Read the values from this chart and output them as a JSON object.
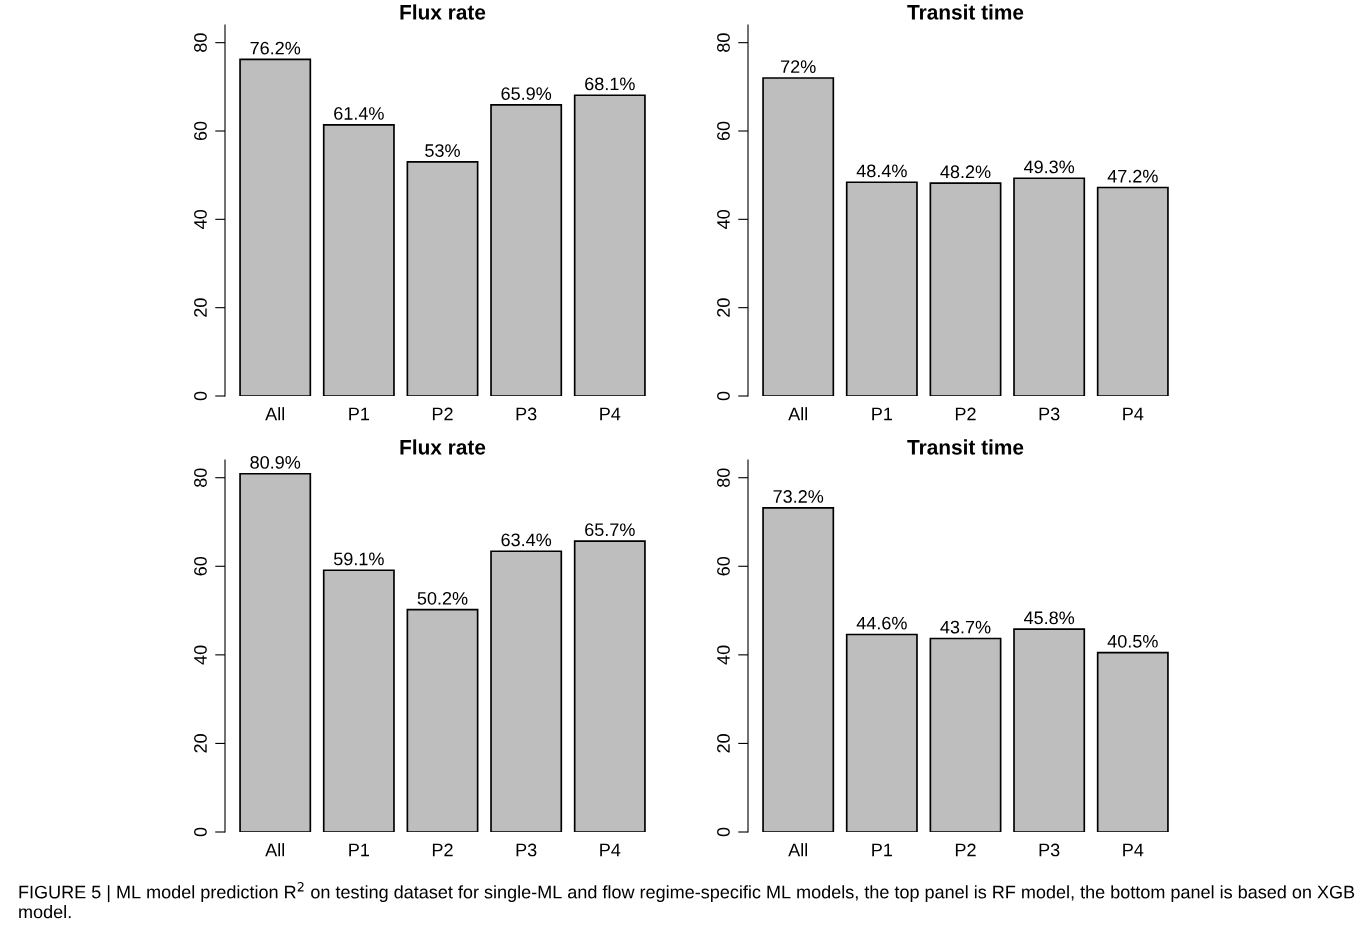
{
  "chart_data": [
    {
      "type": "bar",
      "title": "Flux rate",
      "categories": [
        "All",
        "P1",
        "P2",
        "P3",
        "P4"
      ],
      "values": [
        76.2,
        61.4,
        53,
        65.9,
        68.1
      ],
      "value_labels": [
        "76.2%",
        "61.4%",
        "53%",
        "65.9%",
        "68.1%"
      ],
      "color": "#bebebe",
      "ylim": [
        0,
        84
      ],
      "yticks": [
        0,
        20,
        40,
        60,
        80
      ],
      "grid": false,
      "legend": false,
      "annotations": [
        "FIGURE 5 | ML model prediction R$^{2}$ on testing dataset for single-ML and flow regime-specific ML models, the top panel is RF model, the bottom panel is based on XGB model."
      ]
    },
    {
      "type": "bar",
      "title": "Transit time",
      "categories": [
        "All",
        "P1",
        "P2",
        "P3",
        "P4"
      ],
      "values": [
        72,
        48.4,
        48.2,
        49.3,
        47.2
      ],
      "value_labels": [
        "72%",
        "48.4%",
        "48.2%",
        "49.3%",
        "47.2%"
      ],
      "color": "#bebebe",
      "ylim": [
        0,
        84
      ],
      "yticks": [
        0,
        20,
        40,
        60,
        80
      ],
      "grid": false,
      "legend": false
    },
    {
      "type": "bar",
      "title": "Flux rate",
      "categories": [
        "All",
        "P1",
        "P2",
        "P3",
        "P4"
      ],
      "values": [
        80.9,
        59.1,
        50.2,
        63.4,
        65.7
      ],
      "value_labels": [
        "80.9%",
        "59.1%",
        "50.2%",
        "63.4%",
        "65.7%"
      ],
      "color": "#bebebe",
      "ylim": [
        0,
        84
      ],
      "yticks": [
        0,
        20,
        40,
        60,
        80
      ],
      "grid": false,
      "legend": false
    },
    {
      "type": "bar",
      "title": "Transit time",
      "categories": [
        "All",
        "P1",
        "P2",
        "P3",
        "P4"
      ],
      "values": [
        73.2,
        44.6,
        43.7,
        45.8,
        40.5
      ],
      "value_labels": [
        "73.2%",
        "44.6%",
        "43.7%",
        "45.8%",
        "40.5%"
      ],
      "color": "#bebebe",
      "ylim": [
        0,
        84
      ],
      "yticks": [
        0,
        20,
        40,
        60,
        80
      ],
      "grid": false,
      "legend": false
    }
  ]
}
